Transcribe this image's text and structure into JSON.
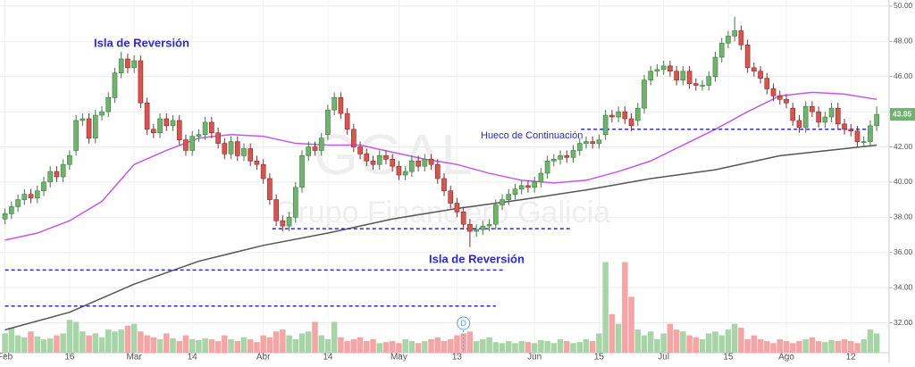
{
  "chart_data": {
    "type": "candlestick",
    "watermark": [
      "GGAL",
      "Grupo Financiero Galicia"
    ],
    "xlim": [
      -0.5,
      136.5
    ],
    "ylim": [
      30.3,
      50.35
    ],
    "volume_lim": [
      0,
      100
    ],
    "xticks": [
      {
        "value": 0,
        "label": "Feb"
      },
      {
        "value": 10,
        "label": "16"
      },
      {
        "value": 20,
        "label": "Mar"
      },
      {
        "value": 29,
        "label": "14"
      },
      {
        "value": 40,
        "label": "Abr"
      },
      {
        "value": 50,
        "label": "14"
      },
      {
        "value": 61,
        "label": "May"
      },
      {
        "value": 70,
        "label": "13"
      },
      {
        "value": 82,
        "label": "Jun"
      },
      {
        "value": 92,
        "label": "15"
      },
      {
        "value": 102,
        "label": "Jul"
      },
      {
        "value": 112,
        "label": "15"
      },
      {
        "value": 121,
        "label": "Ago"
      },
      {
        "value": 131,
        "label": "12"
      }
    ],
    "yticks": [
      {
        "value": 32,
        "label": "32.00"
      },
      {
        "value": 34,
        "label": "34.00"
      },
      {
        "value": 36,
        "label": "36.00"
      },
      {
        "value": 38,
        "label": "38.00"
      },
      {
        "value": 40,
        "label": "40.00"
      },
      {
        "value": 42,
        "label": "42.00"
      },
      {
        "value": 44,
        "label": "44.00"
      },
      {
        "value": 46,
        "label": "46.00"
      },
      {
        "value": 48,
        "label": "48.00"
      },
      {
        "value": 50,
        "label": "50.00"
      }
    ],
    "grid": true,
    "up_color": "#6fb36f",
    "down_color": "#d9534f",
    "volume_up_color": "#a8d5a8",
    "volume_down_color": "#f5a5a5",
    "open": [
      37.9,
      38.2,
      38.6,
      39.0,
      39.3,
      39.1,
      39.5,
      40.0,
      40.6,
      40.3,
      41.0,
      41.8,
      43.5,
      43.6,
      42.5,
      43.8,
      44.0,
      44.8,
      46.2,
      47.0,
      46.5,
      46.9,
      44.5,
      43.0,
      42.8,
      43.6,
      43.2,
      43.5,
      42.4,
      41.8,
      42.6,
      42.7,
      43.4,
      42.8,
      42.2,
      41.6,
      42.3,
      41.5,
      41.9,
      41.2,
      41.0,
      40.2,
      39.0,
      37.8,
      37.5,
      38.0,
      39.7,
      41.5,
      42.0,
      41.8,
      42.7,
      44.1,
      44.8,
      43.9,
      43.0,
      42.0,
      41.6,
      41.2,
      41.0,
      41.5,
      41.3,
      40.9,
      40.4,
      40.6,
      41.2,
      40.9,
      41.3,
      41.0,
      40.2,
      39.5,
      38.8,
      38.3,
      37.6,
      37.2,
      37.3,
      37.5,
      37.6,
      38.7,
      39.0,
      39.3,
      39.6,
      39.8,
      39.7,
      40.0,
      40.5,
      41.2,
      41.3,
      41.5,
      41.4,
      41.8,
      42.2,
      42.3,
      42.2,
      42.7,
      43.8,
      43.7,
      44.0,
      43.6,
      43.5,
      44.2,
      45.8,
      46.3,
      46.4,
      46.6,
      46.3,
      45.8,
      46.3,
      45.6,
      45.5,
      45.5,
      46.0,
      47.1,
      47.9,
      48.3,
      48.6,
      47.8,
      46.5,
      46.3,
      45.9,
      45.3,
      44.9,
      44.7,
      44.2,
      43.5,
      43.1,
      44.3,
      44.0,
      43.4,
      43.7,
      44.2,
      43.3,
      43.0,
      42.9,
      42.3,
      42.3,
      43.2
    ],
    "high": [
      38.5,
      38.9,
      39.3,
      39.6,
      39.6,
      39.8,
      40.3,
      40.9,
      40.9,
      41.3,
      41.8,
      43.8,
      43.9,
      43.9,
      44.1,
      44.3,
      45.1,
      46.5,
      47.4,
      47.3,
      47.2,
      47.2,
      44.8,
      43.3,
      43.9,
      43.9,
      43.8,
      43.8,
      42.7,
      42.9,
      43.0,
      43.7,
      43.7,
      43.1,
      42.5,
      42.6,
      42.6,
      42.2,
      42.2,
      41.5,
      41.3,
      40.5,
      39.3,
      38.1,
      38.3,
      40.0,
      41.8,
      42.3,
      42.3,
      42.8,
      44.4,
      45.1,
      45.1,
      44.2,
      43.3,
      42.3,
      41.9,
      41.5,
      41.8,
      41.8,
      41.6,
      41.2,
      40.9,
      41.5,
      41.5,
      41.6,
      41.6,
      41.3,
      40.5,
      39.8,
      39.1,
      38.6,
      37.9,
      37.6,
      37.8,
      37.9,
      39.0,
      39.3,
      39.6,
      39.9,
      40.1,
      40.1,
      40.3,
      40.8,
      41.5,
      41.6,
      41.8,
      41.8,
      42.1,
      42.5,
      42.6,
      42.6,
      42.7,
      44.1,
      44.1,
      44.3,
      44.3,
      43.9,
      44.5,
      46.1,
      46.6,
      46.7,
      46.9,
      46.9,
      46.6,
      46.6,
      46.6,
      45.9,
      45.8,
      46.3,
      47.4,
      48.2,
      48.6,
      49.4,
      48.9,
      48.1,
      46.8,
      46.6,
      46.2,
      45.6,
      45.2,
      45.0,
      44.5,
      43.8,
      44.6,
      44.6,
      44.3,
      44.0,
      44.5,
      44.5,
      43.6,
      43.3,
      43.2,
      42.6,
      43.5,
      44.3
    ],
    "low": [
      37.6,
      37.9,
      38.3,
      38.7,
      38.8,
      38.8,
      39.2,
      39.7,
      40.0,
      40.0,
      40.7,
      41.5,
      43.2,
      42.2,
      42.2,
      43.5,
      43.7,
      44.5,
      45.9,
      46.2,
      46.2,
      44.2,
      42.7,
      42.5,
      42.5,
      42.9,
      42.9,
      42.1,
      41.5,
      41.5,
      42.3,
      42.4,
      42.5,
      41.9,
      41.3,
      41.3,
      41.2,
      41.2,
      40.9,
      40.7,
      39.9,
      38.7,
      37.5,
      37.2,
      37.2,
      37.7,
      39.4,
      41.2,
      41.5,
      41.5,
      42.4,
      43.8,
      43.6,
      42.7,
      41.7,
      41.3,
      40.9,
      40.7,
      40.7,
      41.0,
      40.6,
      40.1,
      40.1,
      40.3,
      40.6,
      40.6,
      40.7,
      39.9,
      39.2,
      38.5,
      38.0,
      37.3,
      36.3,
      36.9,
      37.0,
      37.2,
      37.3,
      38.4,
      38.7,
      39.0,
      39.3,
      39.4,
      39.4,
      39.7,
      40.2,
      40.9,
      41.0,
      41.1,
      41.1,
      41.5,
      41.9,
      41.9,
      41.9,
      42.4,
      43.4,
      43.4,
      43.3,
      42.9,
      43.2,
      43.9,
      45.5,
      46.0,
      46.1,
      46.0,
      45.5,
      45.5,
      45.3,
      45.2,
      45.2,
      45.2,
      45.7,
      46.8,
      47.6,
      48.0,
      47.5,
      46.2,
      46.0,
      45.6,
      45.0,
      44.6,
      44.4,
      44.2,
      43.2,
      42.8,
      42.8,
      43.7,
      43.1,
      43.1,
      43.4,
      43.0,
      42.7,
      42.6,
      42.0,
      42.0,
      42.0,
      42.9
    ],
    "close": [
      38.2,
      38.6,
      39.0,
      39.3,
      39.1,
      39.5,
      40.0,
      40.6,
      40.3,
      41.0,
      41.5,
      43.5,
      43.6,
      42.5,
      43.8,
      44.0,
      44.8,
      46.2,
      47.0,
      46.5,
      46.9,
      44.5,
      43.0,
      42.8,
      43.6,
      43.2,
      43.5,
      42.4,
      41.8,
      42.6,
      42.7,
      43.4,
      42.8,
      42.2,
      41.6,
      42.3,
      41.5,
      41.9,
      41.2,
      41.0,
      40.2,
      39.0,
      37.8,
      37.5,
      38.0,
      39.7,
      41.5,
      42.0,
      41.8,
      42.5,
      44.1,
      44.8,
      43.9,
      43.0,
      42.0,
      41.6,
      41.2,
      41.0,
      41.5,
      41.3,
      40.9,
      40.4,
      40.6,
      41.2,
      40.9,
      41.3,
      41.0,
      40.2,
      39.5,
      38.8,
      38.3,
      37.6,
      37.2,
      37.3,
      37.5,
      37.6,
      38.7,
      39.0,
      39.3,
      39.6,
      39.8,
      39.7,
      40.0,
      40.5,
      41.2,
      41.3,
      41.5,
      41.4,
      41.8,
      42.2,
      42.3,
      42.2,
      42.4,
      43.8,
      43.7,
      44.0,
      43.6,
      43.2,
      44.2,
      45.8,
      46.3,
      46.4,
      46.6,
      46.3,
      45.8,
      46.3,
      45.6,
      45.5,
      45.5,
      46.0,
      47.1,
      47.9,
      48.3,
      48.6,
      47.8,
      46.5,
      46.3,
      45.9,
      45.3,
      44.9,
      44.7,
      44.5,
      43.5,
      43.1,
      44.3,
      44.0,
      43.4,
      43.7,
      44.2,
      43.3,
      43.0,
      42.9,
      42.3,
      42.3,
      43.2,
      43.85
    ],
    "volume": [
      20,
      26,
      18,
      16,
      22,
      17,
      14,
      15,
      18,
      20,
      34,
      32,
      22,
      18,
      20,
      16,
      24,
      22,
      24,
      28,
      30,
      22,
      18,
      16,
      14,
      20,
      15,
      12,
      18,
      14,
      13,
      15,
      14,
      12,
      18,
      14,
      12,
      16,
      14,
      11,
      18,
      16,
      22,
      24,
      18,
      14,
      20,
      22,
      32,
      18,
      14,
      32,
      16,
      12,
      14,
      16,
      12,
      14,
      10,
      11,
      12,
      10,
      14,
      12,
      10,
      12,
      14,
      16,
      12,
      14,
      18,
      20,
      22,
      12,
      14,
      16,
      11,
      10,
      12,
      10,
      12,
      11,
      10,
      13,
      12,
      10,
      14,
      12,
      10,
      11,
      14,
      12,
      20,
      94,
      40,
      30,
      94,
      58,
      24,
      18,
      22,
      14,
      20,
      30,
      24,
      22,
      18,
      16,
      14,
      20,
      22,
      18,
      24,
      30,
      26,
      14,
      18,
      14,
      12,
      10,
      14,
      12,
      10,
      12,
      14,
      16,
      12,
      11,
      13,
      12,
      14,
      12,
      10,
      14,
      24,
      20
    ],
    "moving_averages": [
      {
        "color": "#c457e8",
        "x": [
          0,
          5,
          10,
          15,
          20,
          25,
          30,
          35,
          40,
          45,
          50,
          55,
          60,
          65,
          70,
          75,
          80,
          85,
          90,
          95,
          100,
          105,
          110,
          115,
          120,
          125,
          130,
          135
        ],
        "values": [
          36.7,
          37.1,
          37.8,
          38.9,
          41.0,
          41.8,
          42.5,
          42.7,
          42.6,
          42.2,
          42.1,
          42.1,
          41.7,
          41.3,
          41.0,
          40.5,
          40.1,
          39.95,
          40.1,
          40.6,
          41.2,
          42.1,
          43.0,
          44.0,
          44.9,
          45.1,
          45.0,
          44.7
        ]
      },
      {
        "color": "#555555",
        "x": [
          0,
          10,
          20,
          30,
          40,
          50,
          60,
          70,
          80,
          90,
          100,
          110,
          120,
          130,
          135
        ],
        "values": [
          31.6,
          32.6,
          34.2,
          35.5,
          36.4,
          37.1,
          37.9,
          38.5,
          39.0,
          39.55,
          40.2,
          40.7,
          41.5,
          41.9,
          42.1
        ]
      }
    ],
    "reference_lines": [
      {
        "y": 32.95,
        "x": [
          0,
          76
        ]
      },
      {
        "y": 35.0,
        "x": [
          0,
          77.2
        ]
      },
      {
        "y": 37.35,
        "x": [
          41.4,
          87.6
        ]
      },
      {
        "y": 43.0,
        "x": [
          89.2,
          134.5
        ]
      }
    ],
    "annotations": [
      "Isla de Reversión",
      "Isla de Reversión",
      "Hueco de Continuación"
    ],
    "event": {
      "label": "D",
      "x": 71
    }
  }
}
